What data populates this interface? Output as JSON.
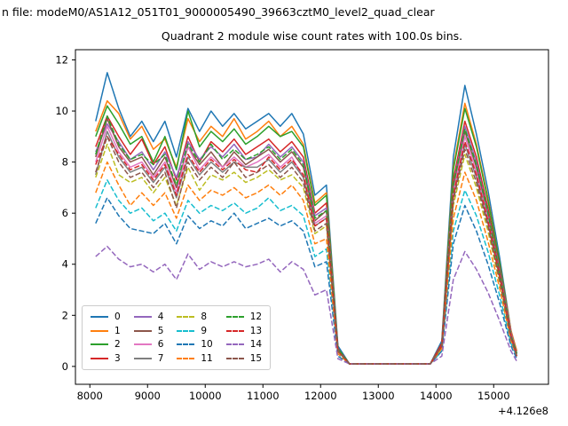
{
  "figure": {
    "suptitle": "n file: modeM0/AS1A12_051T01_9000005490_39663cztM0_level2_quad_clear",
    "title": "Quadrant 2 module wise count rates with 100.0s bins."
  },
  "chart_data": {
    "type": "line",
    "title": "Quadrant 2 module wise count rates with 100.0s bins.",
    "xlabel": "",
    "ylabel": "",
    "x_offset_label": "+4.126e8",
    "xlim": [
      7750,
      15950
    ],
    "ylim": [
      -0.7,
      12.4
    ],
    "x_ticks": [
      8000,
      9000,
      10000,
      11000,
      12000,
      13000,
      14000,
      15000
    ],
    "y_ticks": [
      0,
      2,
      4,
      6,
      8,
      10,
      12
    ],
    "grid": false,
    "legend_position": "lower left",
    "legend_columns": 4,
    "x": [
      8100,
      8300,
      8500,
      8700,
      8900,
      9100,
      9300,
      9500,
      9700,
      9900,
      10100,
      10300,
      10500,
      10700,
      10900,
      11100,
      11300,
      11500,
      11700,
      11900,
      12100,
      12300,
      12500,
      12700,
      12900,
      13100,
      13300,
      13500,
      13700,
      13900,
      14100,
      14300,
      14500,
      14700,
      14900,
      15100,
      15300,
      15400
    ],
    "series": [
      {
        "name": "0",
        "color": "#1f77b4",
        "style": "solid",
        "values": [
          9.6,
          11.5,
          10.1,
          9.0,
          9.6,
          8.8,
          9.6,
          8.2,
          10.1,
          9.2,
          10.0,
          9.4,
          9.9,
          9.3,
          9.6,
          9.9,
          9.4,
          9.9,
          9.1,
          6.7,
          7.1,
          0.8,
          0.1,
          0.1,
          0.1,
          0.1,
          0.1,
          0.1,
          0.1,
          0.1,
          1.0,
          8.2,
          11.0,
          9.1,
          6.9,
          4.3,
          1.4,
          0.6
        ]
      },
      {
        "name": "1",
        "color": "#ff7f0e",
        "style": "solid",
        "values": [
          9.2,
          10.4,
          9.9,
          8.9,
          9.4,
          8.5,
          8.9,
          7.8,
          9.7,
          8.8,
          9.4,
          9.0,
          9.7,
          8.9,
          9.2,
          9.6,
          9.0,
          9.4,
          8.7,
          6.4,
          6.8,
          0.7,
          0.1,
          0.1,
          0.1,
          0.1,
          0.1,
          0.1,
          0.1,
          0.1,
          0.9,
          7.8,
          10.3,
          8.7,
          6.6,
          4.1,
          1.4,
          0.6
        ]
      },
      {
        "name": "2",
        "color": "#2ca02c",
        "style": "solid",
        "values": [
          9.0,
          10.2,
          9.5,
          8.7,
          9.0,
          8.0,
          9.0,
          7.7,
          10.0,
          8.6,
          9.2,
          8.8,
          9.3,
          8.7,
          9.0,
          9.4,
          9.0,
          9.2,
          8.6,
          6.3,
          6.7,
          0.7,
          0.1,
          0.1,
          0.1,
          0.1,
          0.1,
          0.1,
          0.1,
          0.1,
          0.9,
          7.7,
          10.1,
          8.6,
          6.5,
          4.1,
          1.3,
          0.5
        ]
      },
      {
        "name": "3",
        "color": "#d62728",
        "style": "solid",
        "values": [
          8.6,
          9.8,
          9.0,
          8.3,
          8.9,
          7.9,
          8.6,
          7.3,
          9.0,
          8.0,
          8.8,
          8.4,
          8.9,
          8.3,
          8.6,
          8.9,
          8.4,
          8.8,
          8.2,
          6.0,
          6.4,
          0.7,
          0.1,
          0.1,
          0.1,
          0.1,
          0.1,
          0.1,
          0.1,
          0.1,
          0.9,
          7.3,
          9.6,
          8.2,
          6.2,
          3.9,
          1.3,
          0.5
        ]
      },
      {
        "name": "4",
        "color": "#9467bd",
        "style": "solid",
        "values": [
          8.4,
          9.5,
          8.8,
          8.1,
          8.4,
          7.7,
          8.4,
          7.4,
          8.8,
          8.1,
          8.6,
          8.2,
          8.7,
          8.1,
          8.2,
          8.7,
          8.2,
          8.6,
          8.0,
          5.9,
          6.2,
          0.7,
          0.1,
          0.1,
          0.1,
          0.1,
          0.1,
          0.1,
          0.1,
          0.1,
          0.8,
          7.1,
          9.4,
          8.0,
          6.0,
          3.8,
          1.3,
          0.5
        ]
      },
      {
        "name": "5",
        "color": "#8c564b",
        "style": "solid",
        "values": [
          8.2,
          9.7,
          8.6,
          8.0,
          8.2,
          7.5,
          8.2,
          7.0,
          8.6,
          7.9,
          8.4,
          7.8,
          8.4,
          7.9,
          8.2,
          8.5,
          8.0,
          8.4,
          7.8,
          5.7,
          6.1,
          0.7,
          0.1,
          0.1,
          0.1,
          0.1,
          0.1,
          0.1,
          0.1,
          0.1,
          0.8,
          7.0,
          9.2,
          7.8,
          5.9,
          3.7,
          1.2,
          0.5
        ]
      },
      {
        "name": "6",
        "color": "#e377c2",
        "style": "solid",
        "values": [
          8.0,
          9.4,
          8.4,
          7.8,
          8.0,
          7.4,
          8.0,
          6.8,
          8.6,
          7.7,
          8.2,
          7.8,
          8.2,
          7.8,
          8.0,
          8.3,
          7.8,
          8.2,
          7.4,
          5.6,
          5.9,
          0.6,
          0.1,
          0.1,
          0.1,
          0.1,
          0.1,
          0.1,
          0.1,
          0.1,
          0.8,
          6.8,
          9.0,
          7.6,
          5.8,
          3.6,
          1.2,
          0.4
        ]
      },
      {
        "name": "7",
        "color": "#7f7f7f",
        "style": "solid",
        "values": [
          7.5,
          9.2,
          8.2,
          7.6,
          7.8,
          7.2,
          7.8,
          6.6,
          8.2,
          7.5,
          8.0,
          7.6,
          8.0,
          7.8,
          7.8,
          8.1,
          7.6,
          8.0,
          7.4,
          5.5,
          5.8,
          0.6,
          0.1,
          0.1,
          0.1,
          0.1,
          0.1,
          0.1,
          0.1,
          0.1,
          0.8,
          6.6,
          8.7,
          7.4,
          5.6,
          3.5,
          1.2,
          0.4
        ]
      },
      {
        "name": "8",
        "color": "#bcbd22",
        "style": "dashed",
        "values": [
          7.4,
          8.7,
          7.5,
          7.2,
          7.4,
          6.8,
          7.4,
          6.3,
          7.8,
          6.9,
          7.5,
          7.3,
          7.6,
          7.2,
          7.4,
          7.7,
          7.3,
          7.5,
          7.0,
          5.2,
          5.5,
          0.6,
          0.1,
          0.1,
          0.1,
          0.1,
          0.1,
          0.1,
          0.1,
          0.1,
          0.7,
          6.3,
          8.3,
          7.0,
          5.3,
          3.3,
          1.1,
          0.4
        ]
      },
      {
        "name": "9",
        "color": "#17becf",
        "style": "dashed",
        "values": [
          6.2,
          7.3,
          6.5,
          6.0,
          6.2,
          5.7,
          6.0,
          5.3,
          6.5,
          6.0,
          6.3,
          6.1,
          6.4,
          6.0,
          6.2,
          6.6,
          6.1,
          6.3,
          5.9,
          4.3,
          4.6,
          0.5,
          0.1,
          0.1,
          0.1,
          0.1,
          0.1,
          0.1,
          0.1,
          0.1,
          0.6,
          5.3,
          6.9,
          5.9,
          4.5,
          2.8,
          0.9,
          0.4
        ]
      },
      {
        "name": "10",
        "color": "#1f77b4",
        "style": "dashed",
        "values": [
          5.6,
          6.6,
          5.9,
          5.4,
          5.3,
          5.2,
          5.6,
          4.8,
          5.9,
          5.4,
          5.7,
          5.5,
          6.0,
          5.4,
          5.6,
          5.8,
          5.5,
          5.7,
          5.3,
          3.9,
          4.1,
          0.4,
          0.1,
          0.1,
          0.1,
          0.1,
          0.1,
          0.1,
          0.1,
          0.1,
          0.6,
          4.8,
          6.3,
          5.3,
          4.0,
          2.5,
          0.8,
          0.3
        ]
      },
      {
        "name": "11",
        "color": "#ff7f0e",
        "style": "dashed",
        "values": [
          6.8,
          8.0,
          7.1,
          6.3,
          6.8,
          6.3,
          6.8,
          5.8,
          7.1,
          6.5,
          6.9,
          6.7,
          7.0,
          6.6,
          6.8,
          7.1,
          6.7,
          7.1,
          6.5,
          4.8,
          5.0,
          0.5,
          0.1,
          0.1,
          0.1,
          0.1,
          0.1,
          0.1,
          0.1,
          0.1,
          0.7,
          5.8,
          7.6,
          6.5,
          4.9,
          3.1,
          1.0,
          0.4
        ]
      },
      {
        "name": "12",
        "color": "#2ca02c",
        "style": "dashed",
        "values": [
          8.3,
          9.8,
          8.7,
          8.1,
          8.3,
          7.9,
          8.3,
          7.1,
          8.7,
          8.0,
          8.7,
          8.1,
          8.5,
          8.1,
          8.3,
          8.6,
          8.1,
          8.5,
          7.9,
          5.8,
          6.1,
          0.7,
          0.1,
          0.1,
          0.1,
          0.1,
          0.1,
          0.1,
          0.1,
          0.1,
          0.8,
          7.1,
          9.3,
          7.9,
          6.0,
          3.7,
          1.2,
          0.5
        ]
      },
      {
        "name": "13",
        "color": "#d62728",
        "style": "dashed",
        "values": [
          7.9,
          9.0,
          8.3,
          7.7,
          7.9,
          7.3,
          7.9,
          6.7,
          8.3,
          7.6,
          8.1,
          7.7,
          8.1,
          7.7,
          7.6,
          8.2,
          7.7,
          8.1,
          7.5,
          5.5,
          5.8,
          0.6,
          0.1,
          0.1,
          0.1,
          0.1,
          0.1,
          0.1,
          0.1,
          0.1,
          0.8,
          6.7,
          8.8,
          7.5,
          5.7,
          3.6,
          1.2,
          0.4
        ]
      },
      {
        "name": "14",
        "color": "#9467bd",
        "style": "dashed",
        "values": [
          4.3,
          4.7,
          4.2,
          3.9,
          4.0,
          3.7,
          4.0,
          3.4,
          4.4,
          3.8,
          4.1,
          3.9,
          4.1,
          3.9,
          4.0,
          4.2,
          3.7,
          4.1,
          3.8,
          2.8,
          3.0,
          0.3,
          0.1,
          0.1,
          0.1,
          0.1,
          0.1,
          0.1,
          0.1,
          0.1,
          0.4,
          3.4,
          4.5,
          3.8,
          2.9,
          1.8,
          0.6,
          0.2
        ]
      },
      {
        "name": "15",
        "color": "#8c564b",
        "style": "dashed",
        "values": [
          7.6,
          9.0,
          8.0,
          7.4,
          7.6,
          7.0,
          7.6,
          6.2,
          8.0,
          7.3,
          7.8,
          7.4,
          8.0,
          7.4,
          7.6,
          7.9,
          7.4,
          7.8,
          7.2,
          5.3,
          5.6,
          0.6,
          0.1,
          0.1,
          0.1,
          0.1,
          0.1,
          0.1,
          0.1,
          0.1,
          0.8,
          6.5,
          8.5,
          7.2,
          5.5,
          3.4,
          1.1,
          0.4
        ]
      }
    ]
  }
}
